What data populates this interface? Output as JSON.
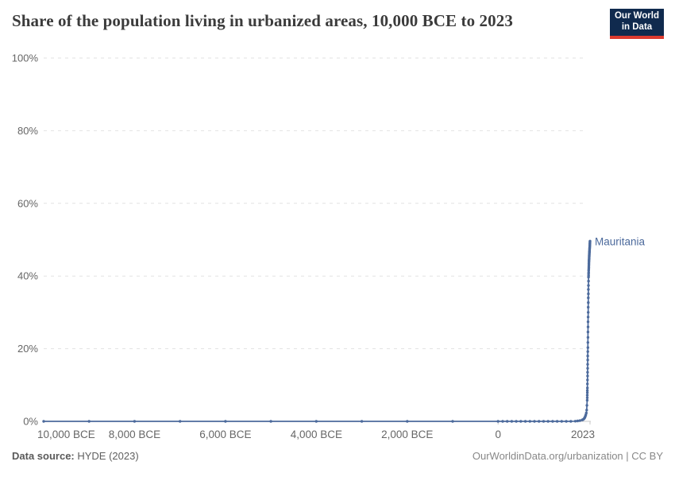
{
  "header": {
    "title": "Share of the population living in urbanized areas, 10,000 BCE to 2023",
    "logo_line1": "Our World",
    "logo_line2": "in Data"
  },
  "colors": {
    "line": "#4C6A9C",
    "grid": "#e2e2e2",
    "axis_line": "#c8c8c8",
    "axis_text": "#666666",
    "title_text": "#3b3b3b",
    "logo_bg": "#102a4e",
    "logo_accent": "#dc3a2f",
    "series_label": "#4C6A9C"
  },
  "chart_data": {
    "type": "line",
    "title": "Share of the population living in urbanized areas, 10,000 BCE to 2023",
    "xlabel": "",
    "ylabel": "",
    "xlim": [
      -10000,
      2023
    ],
    "ylim": [
      0,
      100
    ],
    "grid": "horizontal-dashed",
    "legend_position": "label-at-line-end",
    "x_ticks": [
      {
        "year": -10000,
        "label": "10,000 BCE"
      },
      {
        "year": -8000,
        "label": "8,000 BCE"
      },
      {
        "year": -6000,
        "label": "6,000 BCE"
      },
      {
        "year": -4000,
        "label": "4,000 BCE"
      },
      {
        "year": -2000,
        "label": "2,000 BCE"
      },
      {
        "year": 0,
        "label": "0"
      },
      {
        "year": 2023,
        "label": "2023"
      }
    ],
    "y_ticks": [
      {
        "value": 0,
        "label": "0%"
      },
      {
        "value": 20,
        "label": "20%"
      },
      {
        "value": 40,
        "label": "40%"
      },
      {
        "value": 60,
        "label": "60%"
      },
      {
        "value": 80,
        "label": "80%"
      },
      {
        "value": 100,
        "label": "100%"
      }
    ],
    "series": [
      {
        "name": "Mauritania",
        "final_value_pct": 49.6,
        "points": [
          [
            -10000,
            0
          ],
          [
            -9000,
            0
          ],
          [
            -8000,
            0
          ],
          [
            -7000,
            0
          ],
          [
            -6000,
            0
          ],
          [
            -5000,
            0
          ],
          [
            -4000,
            0
          ],
          [
            -3000,
            0
          ],
          [
            -2000,
            0
          ],
          [
            -1000,
            0
          ],
          [
            0,
            0
          ],
          [
            100,
            0
          ],
          [
            200,
            0
          ],
          [
            300,
            0
          ],
          [
            400,
            0
          ],
          [
            500,
            0
          ],
          [
            600,
            0
          ],
          [
            700,
            0
          ],
          [
            800,
            0
          ],
          [
            900,
            0
          ],
          [
            1000,
            0
          ],
          [
            1100,
            0
          ],
          [
            1200,
            0
          ],
          [
            1300,
            0
          ],
          [
            1400,
            0
          ],
          [
            1500,
            0
          ],
          [
            1600,
            0
          ],
          [
            1700,
            0.05
          ],
          [
            1750,
            0.1
          ],
          [
            1800,
            0.2
          ],
          [
            1850,
            0.4
          ],
          [
            1870,
            0.5
          ],
          [
            1890,
            0.7
          ],
          [
            1900,
            0.9
          ],
          [
            1910,
            1.1
          ],
          [
            1920,
            1.4
          ],
          [
            1930,
            1.8
          ],
          [
            1940,
            2.3
          ],
          [
            1950,
            3.1
          ],
          [
            1955,
            4.4
          ],
          [
            1960,
            5.8
          ],
          [
            1961,
            6.5
          ],
          [
            1962,
            7.2
          ],
          [
            1963,
            7.9
          ],
          [
            1964,
            8.5
          ],
          [
            1965,
            9.2
          ],
          [
            1966,
            10.3
          ],
          [
            1967,
            11.4
          ],
          [
            1968,
            12.5
          ],
          [
            1969,
            13.5
          ],
          [
            1970,
            14.6
          ],
          [
            1971,
            15.7
          ],
          [
            1972,
            16.9
          ],
          [
            1973,
            18.0
          ],
          [
            1974,
            19.2
          ],
          [
            1975,
            20.3
          ],
          [
            1976,
            21.7
          ],
          [
            1977,
            23.1
          ],
          [
            1978,
            24.6
          ],
          [
            1979,
            26.0
          ],
          [
            1980,
            27.4
          ],
          [
            1981,
            28.7
          ],
          [
            1982,
            30.0
          ],
          [
            1983,
            31.4
          ],
          [
            1984,
            32.7
          ],
          [
            1985,
            34.0
          ],
          [
            1986,
            35.1
          ],
          [
            1987,
            36.3
          ],
          [
            1988,
            37.4
          ],
          [
            1989,
            38.6
          ],
          [
            1990,
            39.7
          ],
          [
            1991,
            40.1
          ],
          [
            1992,
            40.6
          ],
          [
            1993,
            41.0
          ],
          [
            1994,
            41.5
          ],
          [
            1995,
            41.9
          ],
          [
            1996,
            42.3
          ],
          [
            1997,
            42.7
          ],
          [
            1998,
            43.1
          ],
          [
            1999,
            43.5
          ],
          [
            2000,
            43.9
          ],
          [
            2001,
            44.2
          ],
          [
            2002,
            44.5
          ],
          [
            2003,
            44.8
          ],
          [
            2004,
            45.1
          ],
          [
            2005,
            45.4
          ],
          [
            2006,
            45.6
          ],
          [
            2007,
            45.9
          ],
          [
            2008,
            46.1
          ],
          [
            2009,
            46.4
          ],
          [
            2010,
            46.6
          ],
          [
            2011,
            46.8
          ],
          [
            2012,
            47.0
          ],
          [
            2013,
            47.3
          ],
          [
            2014,
            47.5
          ],
          [
            2015,
            47.7
          ],
          [
            2016,
            47.9
          ],
          [
            2017,
            48.2
          ],
          [
            2018,
            48.4
          ],
          [
            2019,
            48.7
          ],
          [
            2020,
            48.9
          ],
          [
            2021,
            49.1
          ],
          [
            2022,
            49.4
          ],
          [
            2023,
            49.6
          ]
        ]
      }
    ]
  },
  "footer": {
    "source_label": "Data source:",
    "source_value": " HYDE (2023)",
    "credit": "OurWorldinData.org/urbanization | CC BY"
  }
}
